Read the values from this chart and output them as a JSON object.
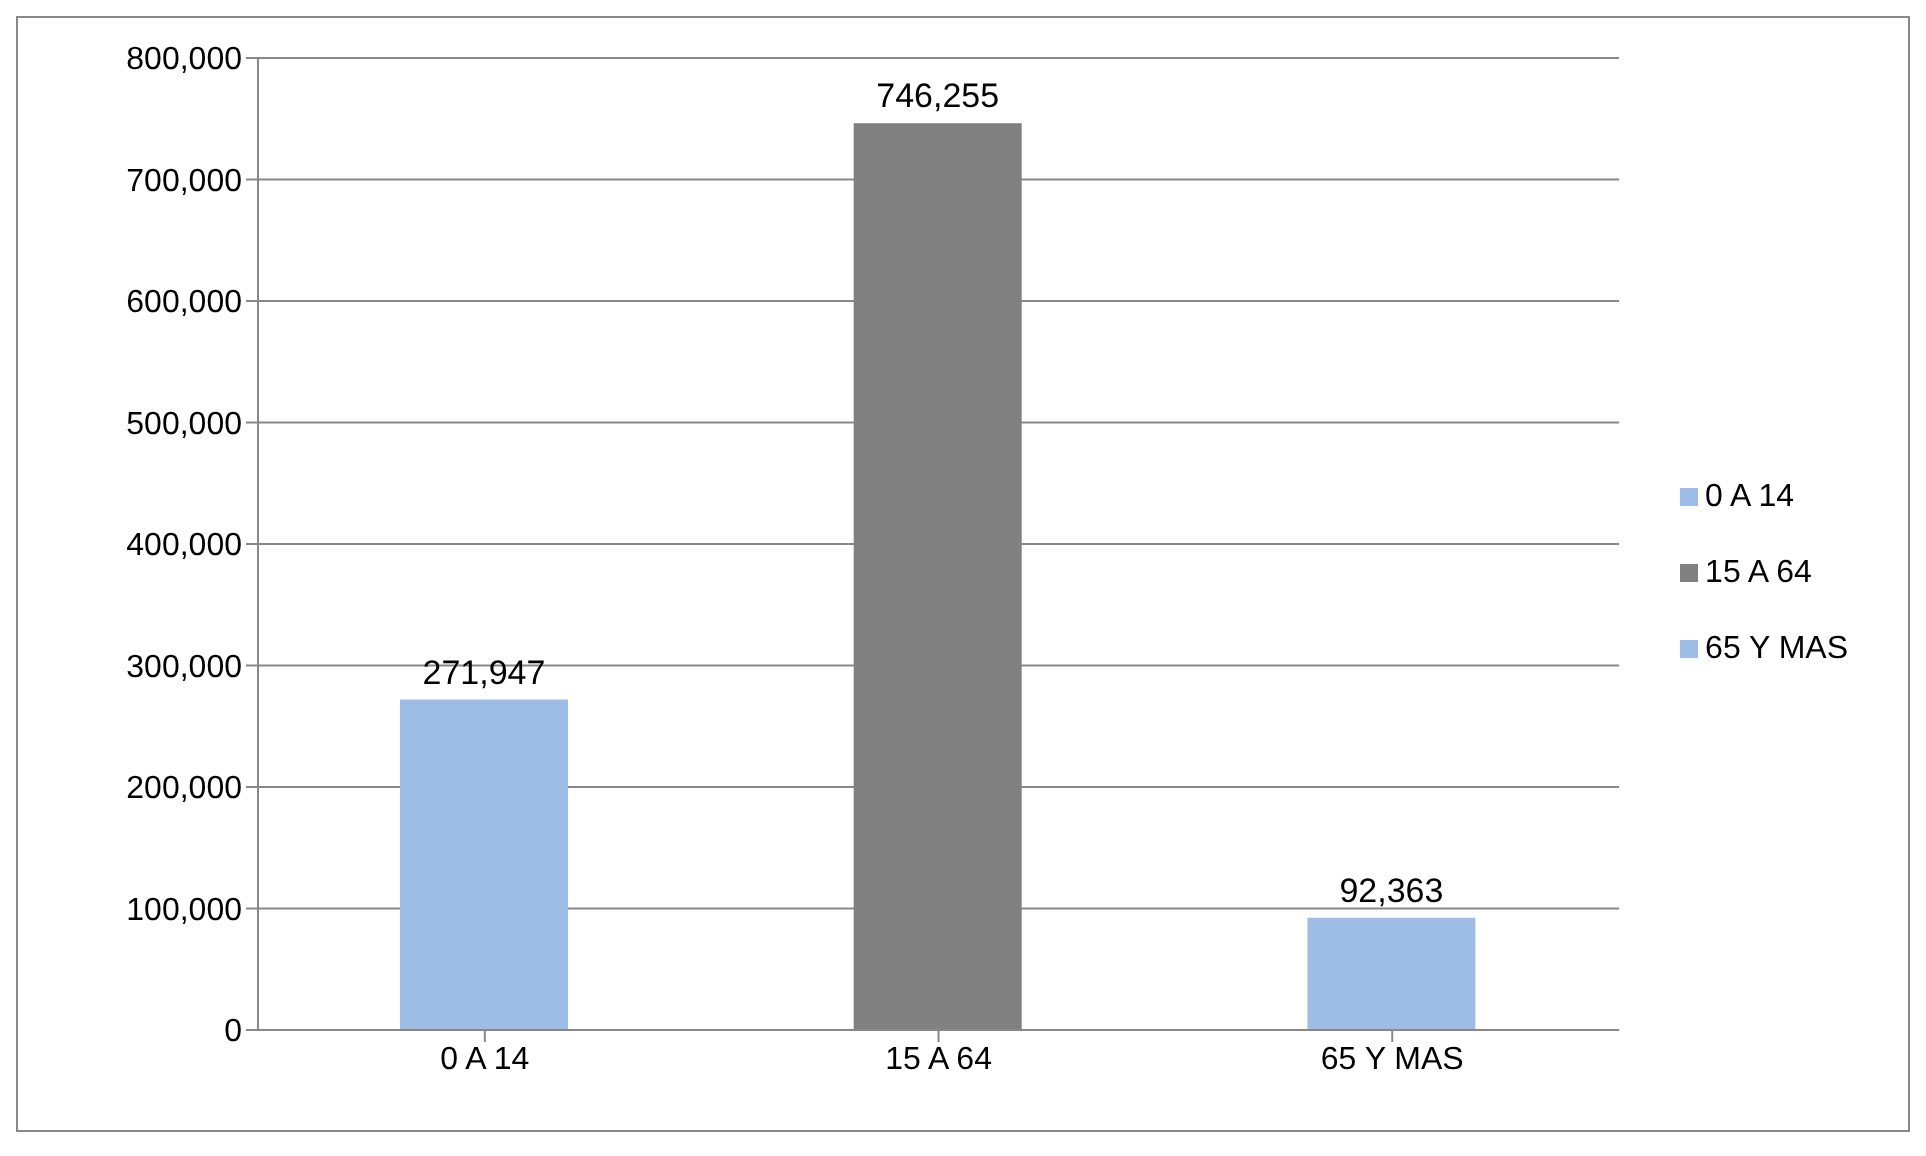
{
  "chart_data": {
    "type": "bar",
    "categories": [
      "0 A 14",
      "15 A 64",
      "65 Y MAS"
    ],
    "series": [
      {
        "name": "0 A 14",
        "color": "#9dbde6",
        "values": [
          271947,
          null,
          null
        ],
        "value_labels": [
          "271,947",
          null,
          null
        ]
      },
      {
        "name": "15 A 64",
        "color": "#808080",
        "values": [
          null,
          746255,
          null
        ],
        "value_labels": [
          null,
          "746,255",
          null
        ]
      },
      {
        "name": "65 Y MAS",
        "color": "#9dbde6",
        "values": [
          null,
          null,
          92363
        ],
        "value_labels": [
          null,
          null,
          "92,363"
        ]
      }
    ],
    "stacked": true,
    "ylim": [
      0,
      800000
    ],
    "yticks": [
      0,
      {
        "value": 100000,
        "label": "100,000"
      },
      {
        "value": 200000,
        "label": "200,000"
      },
      {
        "value": 300000,
        "label": "300,000"
      },
      {
        "value": 400000,
        "label": "400,000"
      },
      {
        "value": 500000,
        "label": "500,000"
      },
      {
        "value": 600000,
        "label": "600,000"
      },
      {
        "value": 700000,
        "label": "700,000"
      },
      {
        "value": 800000,
        "label": "800,000"
      }
    ],
    "grid": "y",
    "legend": "right"
  }
}
